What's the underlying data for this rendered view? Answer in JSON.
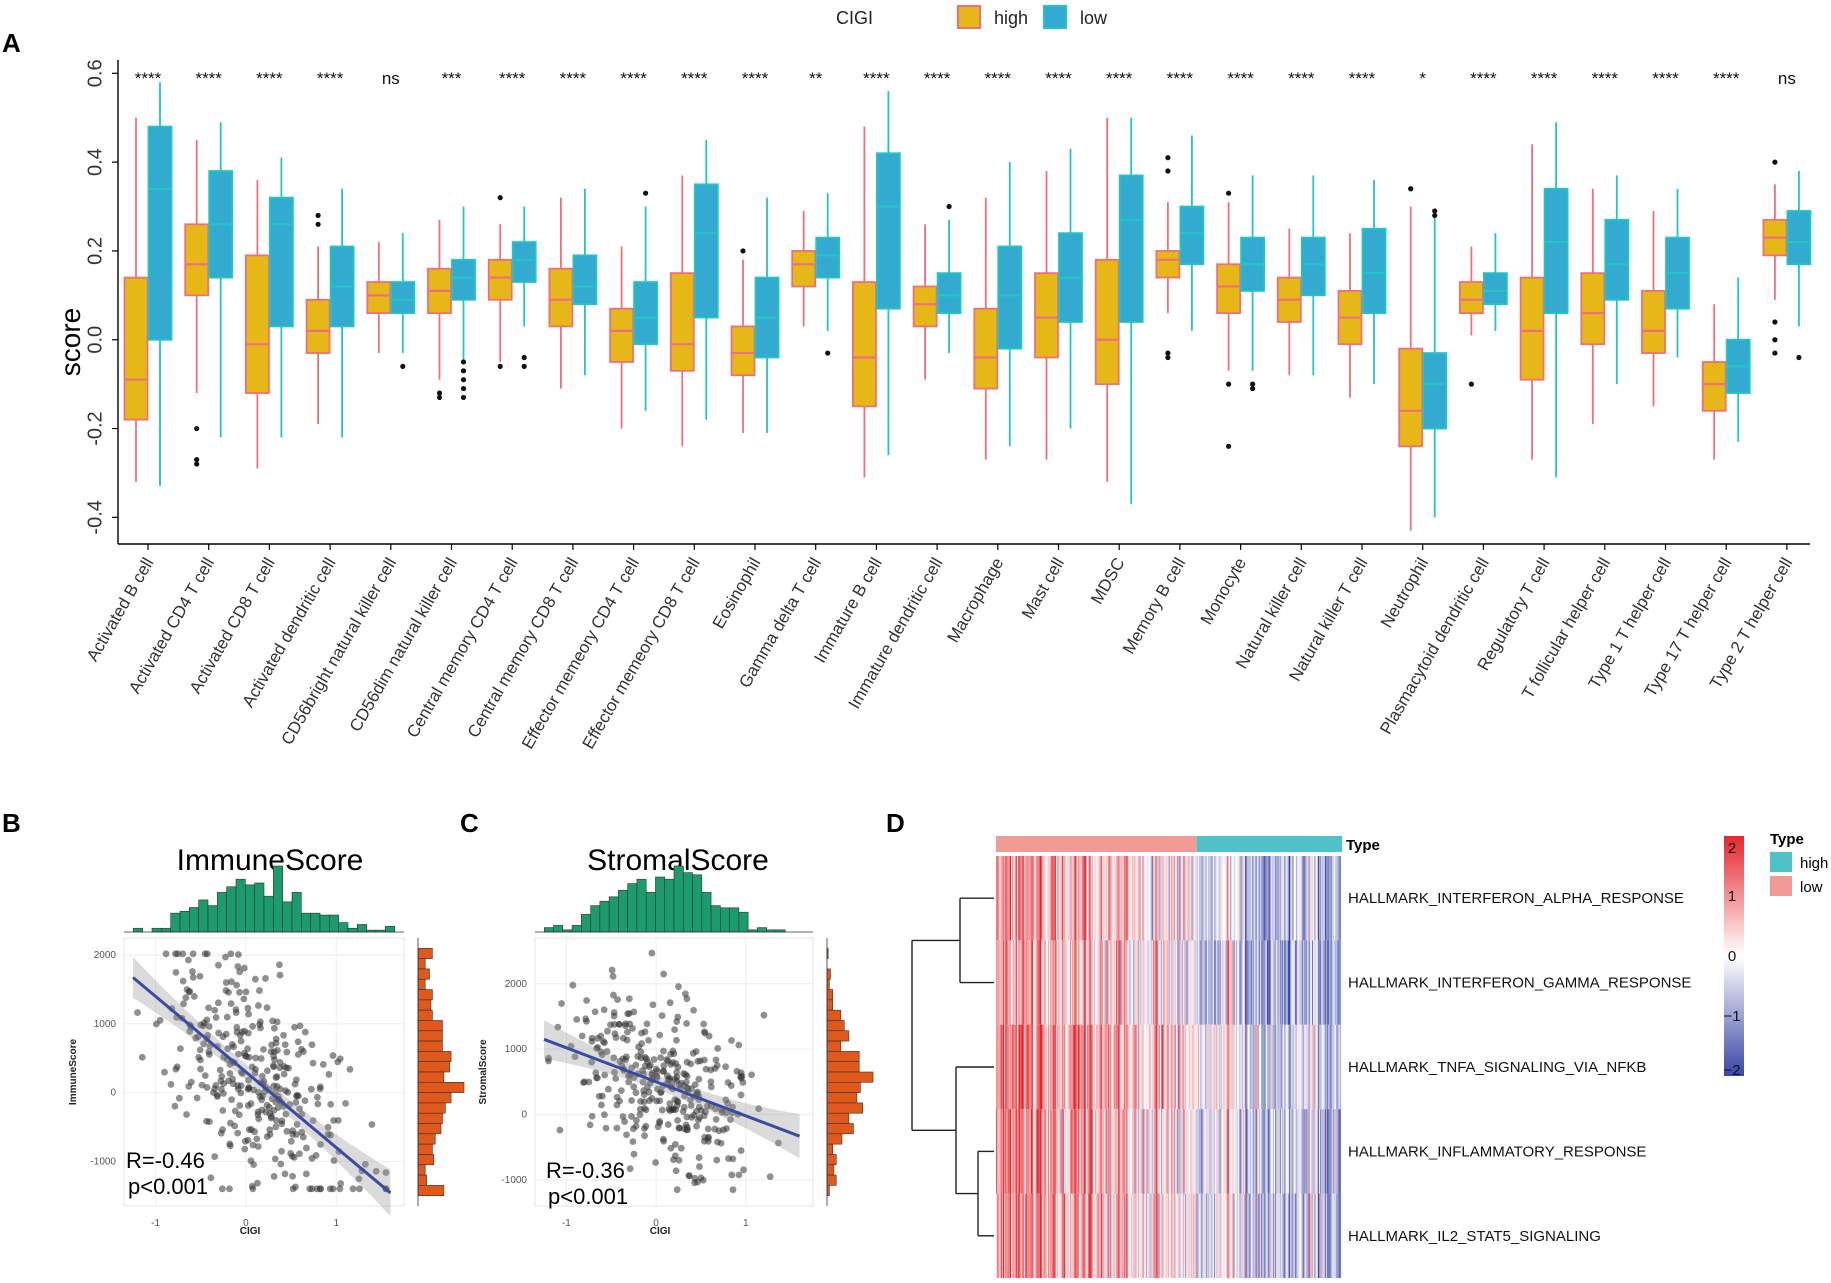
{
  "colors": {
    "high_fill": "#E6B817",
    "high_edge": "#F0707A",
    "low_fill": "#33AACF",
    "low_edge": "#22C4C4",
    "trend": "#3B4BA5",
    "hist_top": "#1C9C6C",
    "hist_right": "#E0581A",
    "heat_high": "#E5262E",
    "heat_low": "#3A46A6",
    "type_high": "#4FC1C9",
    "type_low": "#F29A96"
  },
  "panels": {
    "a": "A",
    "b": "B",
    "c": "C",
    "d": "D"
  },
  "chart_data": [
    {
      "id": "A",
      "type": "box",
      "legend_title": "CIGI",
      "legend_items": [
        "high",
        "low"
      ],
      "ylabel": "score",
      "ylim": [
        -0.46,
        0.63
      ],
      "yticks": [
        -0.4,
        -0.2,
        0.0,
        0.2,
        0.4,
        0.6
      ],
      "ytick_labels": [
        "-0.4",
        "-0.2",
        "0.0",
        "0.2",
        "0.4",
        "0.6"
      ],
      "categories": [
        "Activated B cell",
        "Activated CD4 T cell",
        "Activated CD8 T cell",
        "Activated dendritic cell",
        "CD56bright natural killer cell",
        "CD56dim natural killer cell",
        "Central memory CD4 T cell",
        "Central memory CD8 T cell",
        "Effector memeory CD4 T cell",
        "Effector memeory CD8 T cell",
        "Eosinophil",
        "Gamma delta T cell",
        "Immature  B cell",
        "Immature dendritic cell",
        "Macrophage",
        "Mast cell",
        "MDSC",
        "Memory B cell",
        "Monocyte",
        "Natural killer cell",
        "Natural killer T cell",
        "Neutrophil",
        "Plasmacytoid dendritic cell",
        "Regulatory T cell",
        "T follicular helper cell",
        "Type 1 T helper cell",
        "Type 17 T helper cell",
        "Type 2 T helper cell"
      ],
      "significance": [
        "****",
        "****",
        "****",
        "****",
        "ns",
        "***",
        "****",
        "****",
        "****",
        "****",
        "****",
        "**",
        "****",
        "****",
        "****",
        "****",
        "****",
        "****",
        "****",
        "****",
        "****",
        "*",
        "****",
        "****",
        "****",
        "****",
        "****",
        "ns"
      ],
      "high": [
        [
          -0.32,
          -0.18,
          -0.09,
          0.14,
          0.5
        ],
        [
          -0.12,
          0.1,
          0.17,
          0.26,
          0.45
        ],
        [
          -0.29,
          -0.12,
          -0.01,
          0.19,
          0.36
        ],
        [
          -0.19,
          -0.03,
          0.02,
          0.09,
          0.21
        ],
        [
          -0.03,
          0.06,
          0.1,
          0.13,
          0.22
        ],
        [
          -0.09,
          0.06,
          0.11,
          0.16,
          0.27
        ],
        [
          -0.05,
          0.09,
          0.14,
          0.18,
          0.26
        ],
        [
          -0.11,
          0.03,
          0.09,
          0.16,
          0.32
        ],
        [
          -0.2,
          -0.05,
          0.02,
          0.07,
          0.21
        ],
        [
          -0.24,
          -0.07,
          -0.01,
          0.15,
          0.37
        ],
        [
          -0.21,
          -0.08,
          -0.03,
          0.03,
          0.18
        ],
        [
          0.03,
          0.12,
          0.17,
          0.2,
          0.29
        ],
        [
          -0.31,
          -0.15,
          -0.04,
          0.13,
          0.48
        ],
        [
          -0.09,
          0.03,
          0.08,
          0.12,
          0.26
        ],
        [
          -0.27,
          -0.11,
          -0.04,
          0.07,
          0.32
        ],
        [
          -0.27,
          -0.04,
          0.05,
          0.15,
          0.38
        ],
        [
          -0.32,
          -0.1,
          0.0,
          0.18,
          0.5
        ],
        [
          0.06,
          0.14,
          0.18,
          0.2,
          0.31
        ],
        [
          -0.07,
          0.06,
          0.12,
          0.17,
          0.31
        ],
        [
          -0.08,
          0.04,
          0.09,
          0.14,
          0.25
        ],
        [
          -0.13,
          -0.01,
          0.05,
          0.11,
          0.24
        ],
        [
          -0.43,
          -0.24,
          -0.16,
          -0.02,
          0.3
        ],
        [
          0.01,
          0.06,
          0.09,
          0.13,
          0.21
        ],
        [
          -0.27,
          -0.09,
          0.02,
          0.14,
          0.44
        ],
        [
          -0.19,
          -0.01,
          0.06,
          0.15,
          0.34
        ],
        [
          -0.15,
          -0.03,
          0.02,
          0.11,
          0.29
        ],
        [
          -0.27,
          -0.16,
          -0.1,
          -0.05,
          0.08
        ],
        [
          0.09,
          0.19,
          0.23,
          0.27,
          0.35
        ]
      ],
      "low": [
        [
          -0.33,
          0.0,
          0.34,
          0.48,
          0.58
        ],
        [
          -0.22,
          0.14,
          0.26,
          0.38,
          0.49
        ],
        [
          -0.22,
          0.03,
          0.26,
          0.32,
          0.41
        ],
        [
          -0.22,
          0.03,
          0.12,
          0.21,
          0.34
        ],
        [
          -0.03,
          0.06,
          0.09,
          0.13,
          0.24
        ],
        [
          -0.05,
          0.09,
          0.14,
          0.18,
          0.3
        ],
        [
          0.03,
          0.13,
          0.18,
          0.22,
          0.3
        ],
        [
          -0.08,
          0.08,
          0.12,
          0.19,
          0.34
        ],
        [
          -0.16,
          -0.01,
          0.05,
          0.13,
          0.3
        ],
        [
          -0.18,
          0.05,
          0.24,
          0.35,
          0.45
        ],
        [
          -0.21,
          -0.04,
          0.05,
          0.14,
          0.32
        ],
        [
          0.02,
          0.14,
          0.19,
          0.23,
          0.33
        ],
        [
          -0.26,
          0.07,
          0.3,
          0.42,
          0.56
        ],
        [
          -0.03,
          0.06,
          0.1,
          0.15,
          0.27
        ],
        [
          -0.24,
          -0.02,
          0.1,
          0.21,
          0.4
        ],
        [
          -0.2,
          0.04,
          0.14,
          0.24,
          0.43
        ],
        [
          -0.37,
          0.04,
          0.27,
          0.37,
          0.5
        ],
        [
          0.02,
          0.17,
          0.24,
          0.3,
          0.46
        ],
        [
          -0.07,
          0.11,
          0.17,
          0.23,
          0.37
        ],
        [
          -0.08,
          0.1,
          0.17,
          0.23,
          0.37
        ],
        [
          -0.1,
          0.06,
          0.15,
          0.25,
          0.36
        ],
        [
          -0.4,
          -0.2,
          -0.1,
          -0.03,
          0.29
        ],
        [
          0.02,
          0.08,
          0.11,
          0.15,
          0.24
        ],
        [
          -0.31,
          0.06,
          0.22,
          0.34,
          0.49
        ],
        [
          -0.1,
          0.09,
          0.17,
          0.27,
          0.37
        ],
        [
          -0.04,
          0.07,
          0.15,
          0.23,
          0.34
        ],
        [
          -0.23,
          -0.12,
          -0.06,
          0.0,
          0.14
        ],
        [
          0.03,
          0.17,
          0.22,
          0.29,
          0.38
        ]
      ],
      "outliers_high": [
        [],
        [
          -0.2,
          -0.27,
          -0.28
        ],
        [],
        [
          0.26,
          0.28
        ],
        [],
        [
          -0.12,
          -0.13
        ],
        [
          0.32,
          -0.06
        ],
        [],
        [],
        [],
        [
          0.2
        ],
        [],
        [],
        [],
        [],
        [],
        [],
        [
          0.41,
          0.38,
          -0.03,
          -0.04
        ],
        [
          0.33,
          -0.1,
          -0.24
        ],
        [],
        [],
        [
          0.34
        ],
        [
          -0.1
        ],
        [],
        [],
        [],
        [],
        [
          0.4,
          0.04,
          0.0,
          -0.03
        ]
      ],
      "outliers_low": [
        [],
        [],
        [],
        [],
        [
          -0.06
        ],
        [
          -0.05,
          -0.07,
          -0.09,
          -0.11,
          -0.13
        ],
        [
          -0.04,
          -0.06
        ],
        [],
        [
          0.33
        ],
        [],
        [],
        [
          -0.03
        ],
        [],
        [
          0.3
        ],
        [],
        [],
        [],
        [],
        [
          -0.1,
          -0.11
        ],
        [],
        [],
        [
          0.29,
          0.28
        ],
        [],
        [],
        [],
        [],
        [],
        [
          -0.04
        ]
      ]
    },
    {
      "id": "B",
      "type": "scatter",
      "title": "ImmuneScore",
      "xlabel": "CIGI",
      "ylabel": "ImmuneScore",
      "xlim": [
        -1.35,
        1.75
      ],
      "ylim": [
        -1650,
        2250
      ],
      "xticks": [
        -1,
        0,
        1
      ],
      "yticks": [
        -1000,
        0,
        1000,
        2000
      ],
      "trend": {
        "slope": -1100,
        "intercept": 300,
        "x_range": [
          -1.25,
          1.6
        ]
      },
      "annotation": [
        "R=-0.46",
        "p<0.001"
      ],
      "n_points": 340,
      "seed": 7
    },
    {
      "id": "C",
      "type": "scatter",
      "title": "StromalScore",
      "xlabel": "CIGI",
      "ylabel": "StromalScore",
      "xlim": [
        -1.35,
        1.75
      ],
      "ylim": [
        -1400,
        2700
      ],
      "xticks": [
        -1,
        0,
        1
      ],
      "yticks": [
        -1000,
        0,
        1000,
        2000
      ],
      "trend": {
        "slope": -520,
        "intercept": 500,
        "x_range": [
          -1.25,
          1.6
        ]
      },
      "annotation": [
        "R=-0.36",
        "p<0.001"
      ],
      "n_points": 340,
      "seed": 13
    },
    {
      "id": "D",
      "type": "heatmap",
      "annotation_label": "Type",
      "rows": [
        "HALLMARK_INTERFERON_ALPHA_RESPONSE",
        "HALLMARK_INTERFERON_GAMMA_RESPONSE",
        "HALLMARK_TNFA_SIGNALING_VIA_NFKB",
        "HALLMARK_INFLAMMATORY_RESPONSE",
        "HALLMARK_IL2_STAT5_SIGNALING"
      ],
      "colorbar_ticks": [
        2,
        1,
        0,
        -1,
        -2
      ],
      "colorbar_labels": [
        "2",
        "1",
        "0",
        "−1",
        "−2"
      ],
      "legend_title": "Type",
      "legend_items": [
        "high",
        "low"
      ],
      "n_samples": 300,
      "low_fraction": 0.58
    }
  ]
}
